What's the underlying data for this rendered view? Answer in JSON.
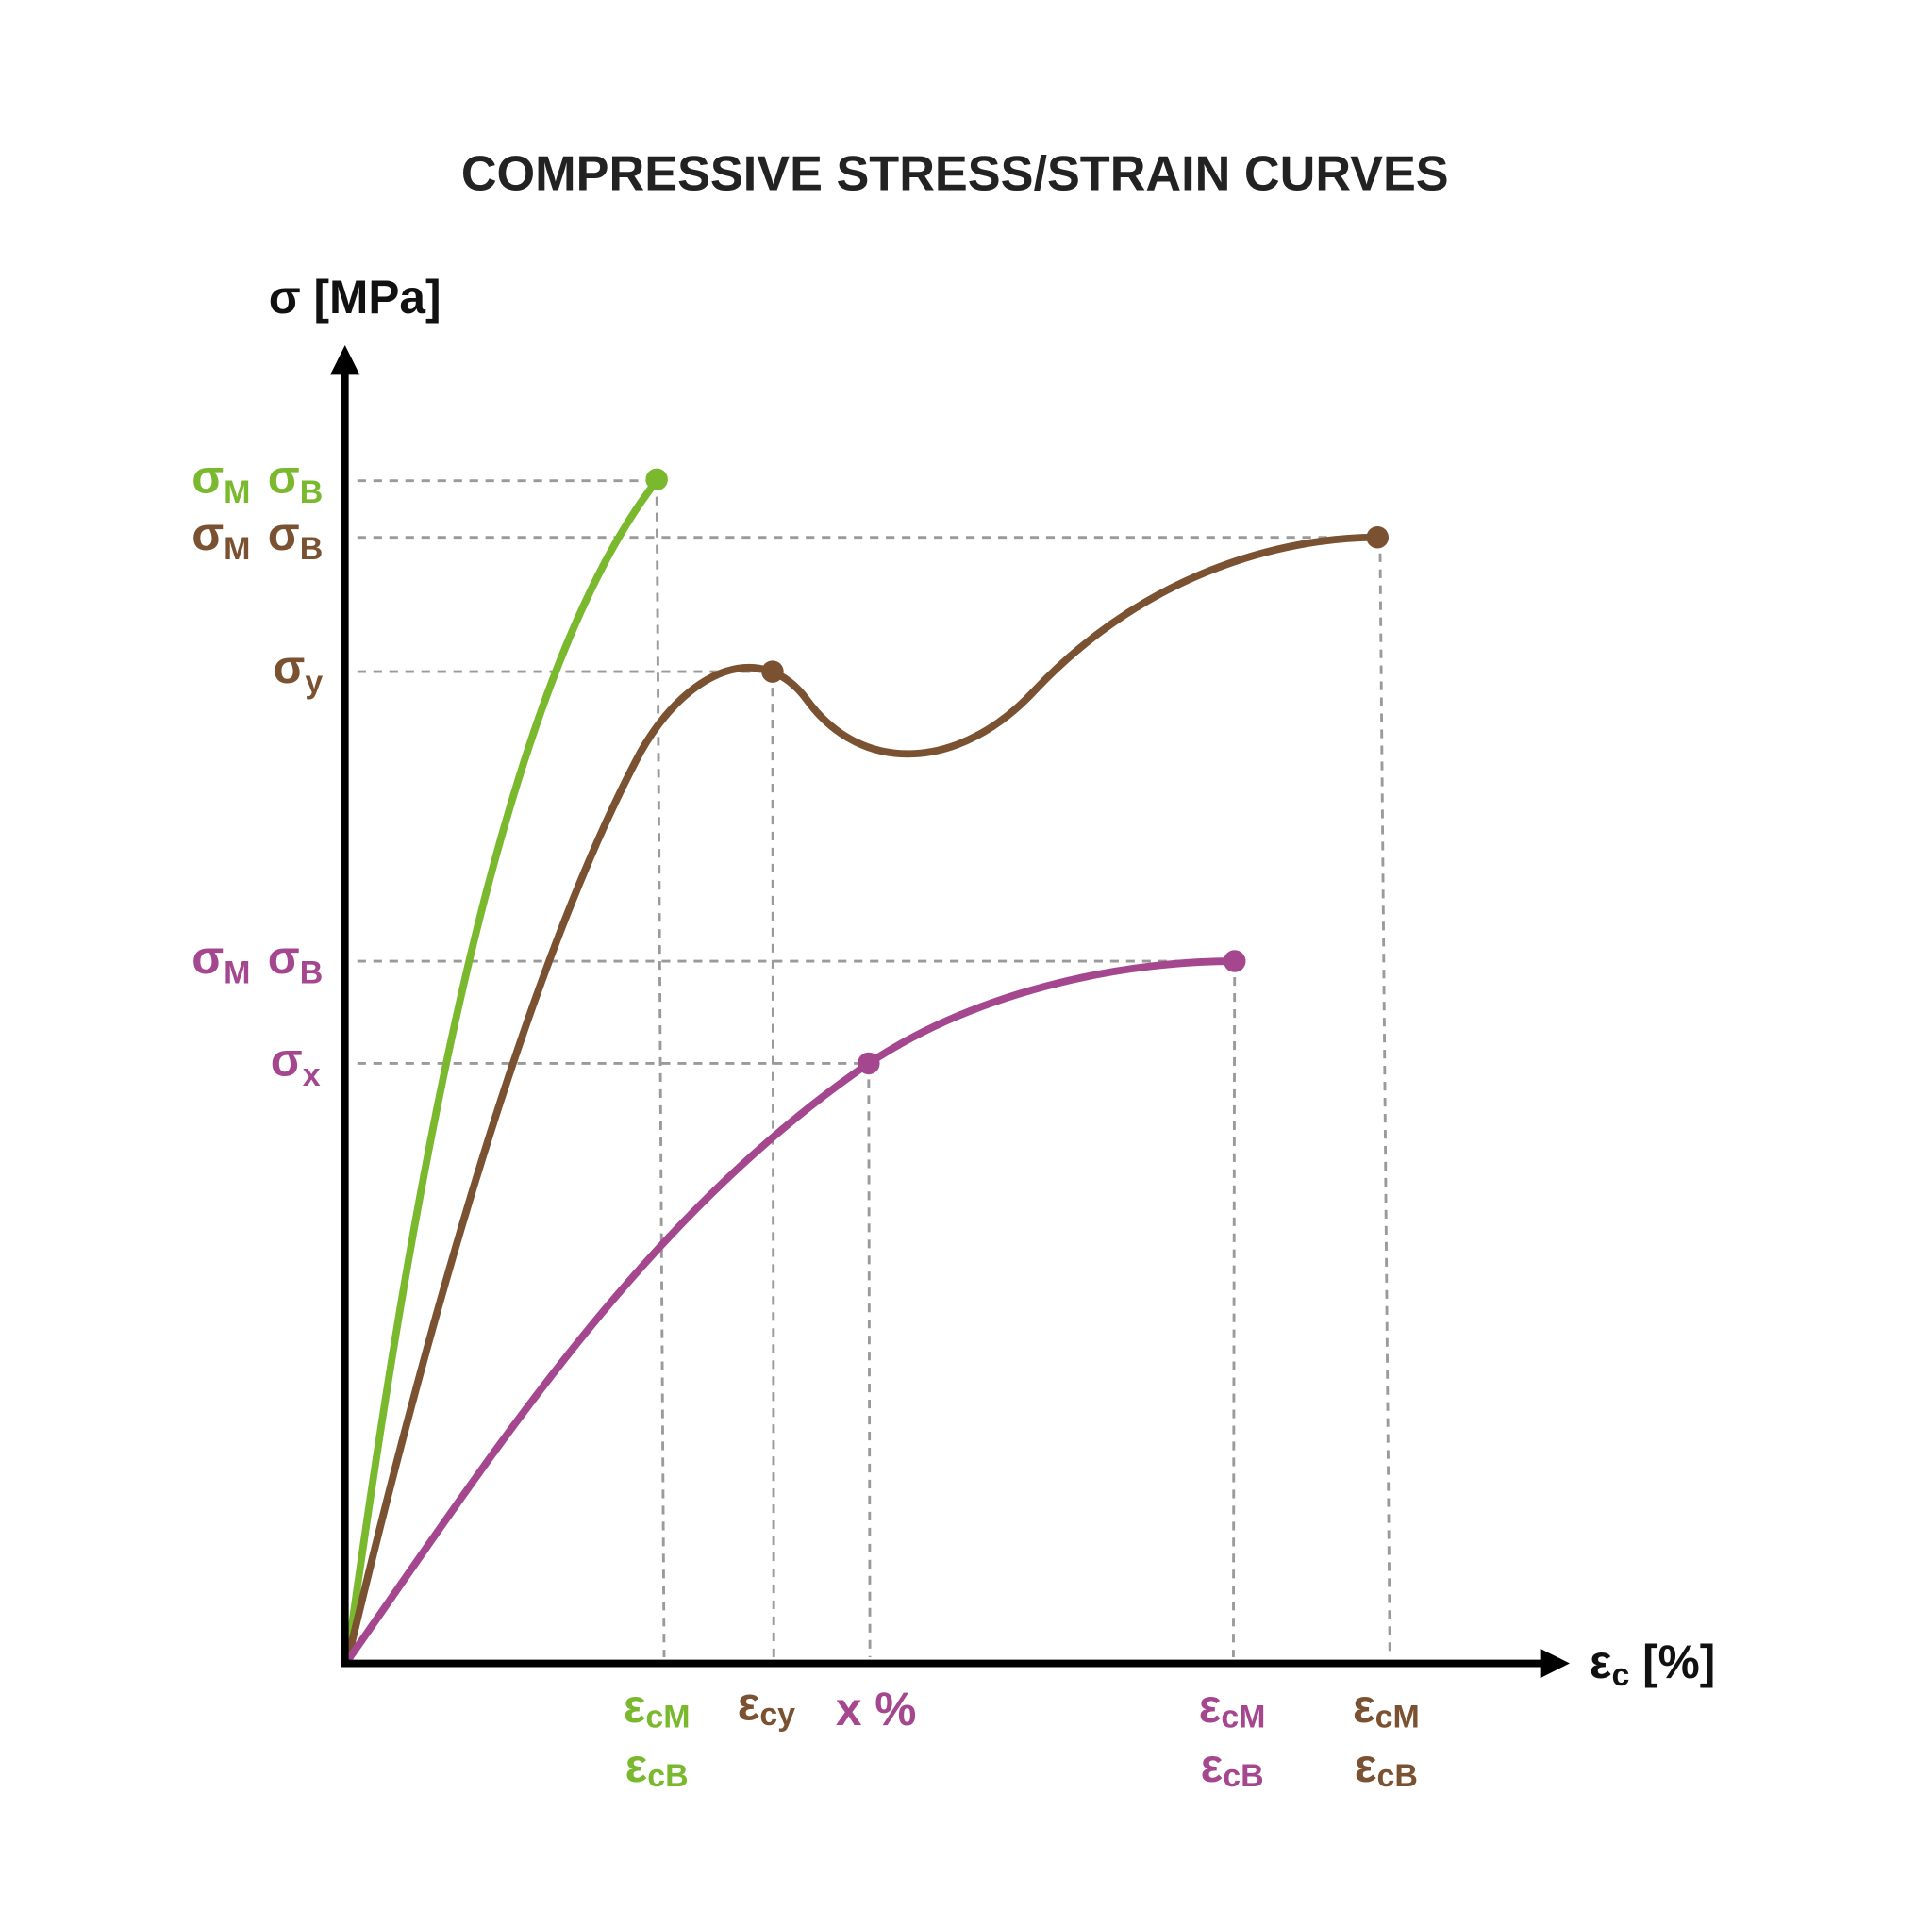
{
  "chart_data": {
    "type": "line",
    "title": "COMPRESSIVE STRESS/STRAIN CURVES",
    "ylabel": "σ [MPa]",
    "xlabel": {
      "symbol": "ε",
      "sub": "c",
      "unit": " [%]"
    },
    "grid": false,
    "axis_ticks": "none (qualitative schematic)",
    "colors": {
      "green": "#7ab82e",
      "brown": "#7a5232",
      "purple": "#a4478f",
      "axis": "#000000",
      "guide": "#9a9a9a"
    },
    "series": [
      {
        "color": "#7ab82e",
        "y_labels": {
          "max_break": [
            {
              "sym": "σ",
              "sub": "M"
            },
            {
              "sym": "σ",
              "sub": "B"
            }
          ]
        },
        "x_labels": {
          "line1": {
            "sym": "ε",
            "sub": "cM"
          },
          "line2": {
            "sym": "ε",
            "sub": "cB"
          }
        }
      },
      {
        "color": "#7a5232",
        "y_labels": {
          "max_break": [
            {
              "sym": "σ",
              "sub": "M"
            },
            {
              "sym": "σ",
              "sub": "B"
            }
          ],
          "yield": {
            "sym": "σ",
            "sub": "y"
          }
        },
        "x_labels": {
          "yield": {
            "sym": "ε",
            "sub": "cy"
          },
          "line1": {
            "sym": "ε",
            "sub": "cM"
          },
          "line2": {
            "sym": "ε",
            "sub": "cB"
          }
        }
      },
      {
        "color": "#a4478f",
        "y_labels": {
          "max_break": [
            {
              "sym": "σ",
              "sub": "M"
            },
            {
              "sym": "σ",
              "sub": "B"
            }
          ],
          "x_point": {
            "sym": "σ",
            "sub": "x"
          }
        },
        "x_labels": {
          "x_point": "x %",
          "line1": {
            "sym": "ε",
            "sub": "cM"
          },
          "line2": {
            "sym": "ε",
            "sub": "cB"
          }
        }
      }
    ]
  }
}
